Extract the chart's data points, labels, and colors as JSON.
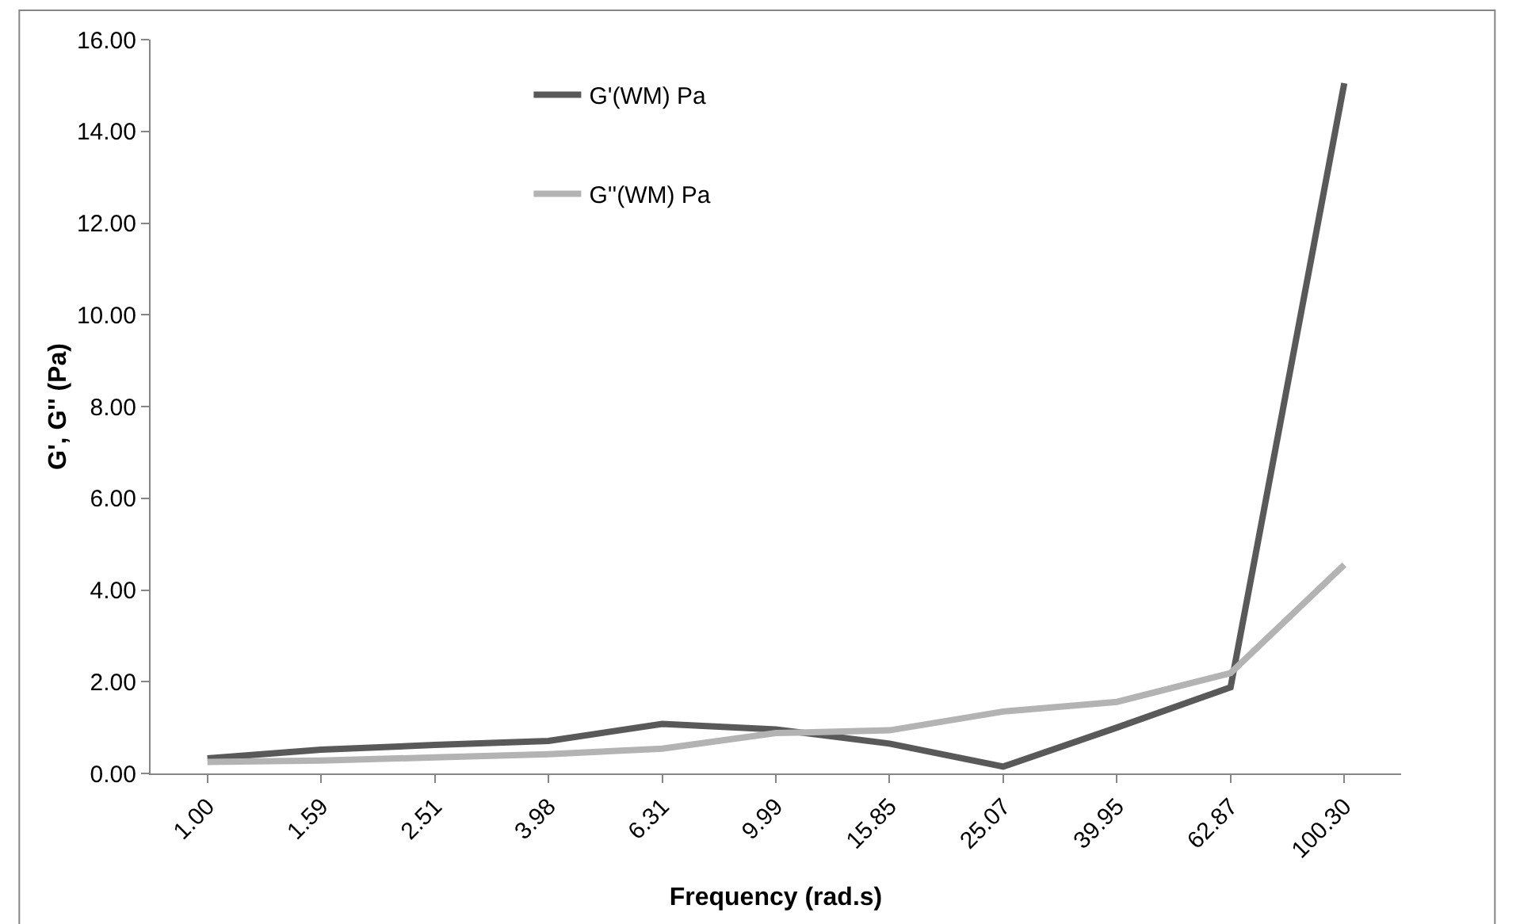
{
  "chart_data": {
    "type": "line",
    "xlabel": "Frequency (rad.s)",
    "ylabel": "G', G'' (Pa)",
    "categories": [
      "1.00",
      "1.59",
      "2.51",
      "3.98",
      "6.31",
      "9.99",
      "15.85",
      "25.07",
      "39.95",
      "62.87",
      "100.30"
    ],
    "series": [
      {
        "name": "G'(WM) Pa",
        "color": "#595959",
        "values": [
          0.33,
          0.52,
          0.62,
          0.71,
          1.08,
          0.96,
          0.65,
          0.15,
          1.0,
          1.88,
          15.05
        ]
      },
      {
        "name": "G''(WM) Pa",
        "color": "#b3b3b3",
        "values": [
          0.25,
          0.28,
          0.35,
          0.42,
          0.54,
          0.88,
          0.94,
          1.35,
          1.56,
          2.19,
          4.55
        ]
      }
    ],
    "ylim": [
      0,
      16
    ],
    "yticks": [
      {
        "value": 0,
        "label": "0.00"
      },
      {
        "value": 2,
        "label": "2.00"
      },
      {
        "value": 4,
        "label": "4.00"
      },
      {
        "value": 6,
        "label": "6.00"
      },
      {
        "value": 8,
        "label": "8.00"
      },
      {
        "value": 10,
        "label": "10.00"
      },
      {
        "value": 12,
        "label": "12.00"
      },
      {
        "value": 14,
        "label": "14.00"
      },
      {
        "value": 16,
        "label": "16.00"
      }
    ],
    "legend": "top",
    "marker": "none",
    "line_style": "solid"
  }
}
